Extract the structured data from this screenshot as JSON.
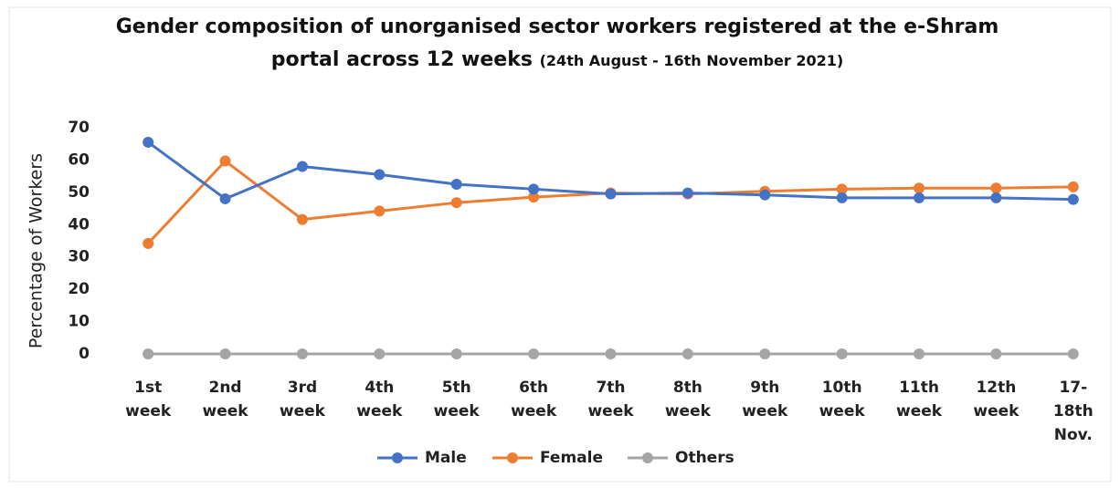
{
  "chart_data": {
    "type": "line",
    "title": "Gender composition of unorganised sector workers registered at the e-Shram portal across 12 weeks",
    "subtitle": "(24th August - 16th November 2021)",
    "ylabel": "Percentage of Workers",
    "categories": [
      "1st week",
      "2nd week",
      "3rd week",
      "4th week",
      "5th week",
      "6th week",
      "7th week",
      "8th week",
      "9th week",
      "10th week",
      "11th week",
      "12th week",
      "17-18th Nov."
    ],
    "series": [
      {
        "name": "Male",
        "color": "#4472c4",
        "values": [
          65.5,
          48,
          58,
          55.5,
          52.5,
          51,
          49.5,
          49.8,
          49.2,
          48.3,
          48.3,
          48.3,
          47.8
        ]
      },
      {
        "name": "Female",
        "color": "#ed7d31",
        "values": [
          34.2,
          59.7,
          41.6,
          44.2,
          46.8,
          48.5,
          49.8,
          49.5,
          50.3,
          51,
          51.3,
          51.3,
          51.7
        ]
      },
      {
        "name": "Others",
        "color": "#a5a5a5",
        "values": [
          0,
          0,
          0,
          0,
          0,
          0,
          0,
          0,
          0,
          0,
          0,
          0,
          0
        ]
      }
    ],
    "ylim": [
      0,
      70
    ],
    "yticks": [
      0,
      10,
      20,
      30,
      40,
      50,
      60,
      70
    ],
    "grid": false,
    "legend": "bottom"
  }
}
